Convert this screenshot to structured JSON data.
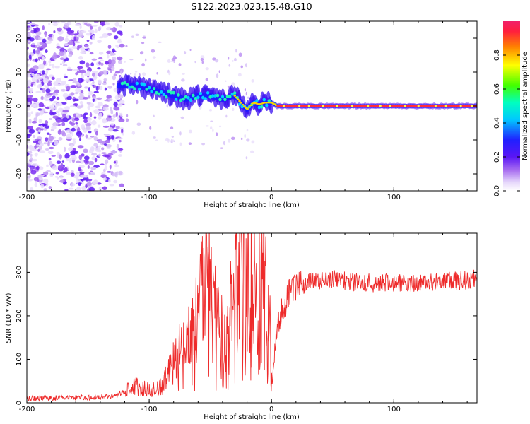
{
  "title": "S122.2023.023.15.48.G10",
  "colors": {
    "snr_line": "#ee2b2b",
    "spec_low": "#c39cf0",
    "spec_mid": "#1a1aff",
    "spec_high": "#ff1f3d",
    "frame": "#000000"
  },
  "chart_data": [
    {
      "type": "heatmap",
      "xlabel": "Height of straight line (km)",
      "ylabel": "Frequency (Hz)",
      "xlim": [
        -200,
        168
      ],
      "ylim": [
        -25,
        25
      ],
      "xticks": [
        -200,
        -100,
        0,
        100
      ],
      "xtick_labels": [
        "-200",
        "-100",
        "0",
        "100"
      ],
      "yticks": [
        -20,
        -10,
        0,
        10,
        20
      ],
      "ytick_labels": [
        "-20",
        "-10",
        "0",
        "10",
        "20"
      ],
      "colorbar": {
        "label": "Normalized spectral amplitude",
        "range": [
          0,
          1
        ],
        "ticks": [
          0.0,
          0.2,
          0.4,
          0.6,
          0.8
        ],
        "tick_labels": [
          "0.0",
          "0.2",
          "0.4",
          "0.6",
          "0.8"
        ]
      },
      "ridge": {
        "x": [
          -125,
          -110,
          -100,
          -90,
          -80,
          -70,
          -60,
          -50,
          -40,
          -30,
          -25,
          -20,
          -15,
          -10,
          -5,
          0,
          5,
          50,
          100,
          168
        ],
        "freq": [
          6,
          6,
          5,
          4,
          3,
          2,
          3,
          3,
          2,
          3,
          1,
          -1,
          1,
          0.5,
          1,
          1,
          0,
          0,
          0,
          0
        ]
      }
    },
    {
      "type": "line",
      "xlabel": "Height of straight line (km)",
      "ylabel": "SNR (10 * v/v)",
      "xlim": [
        -200,
        168
      ],
      "ylim": [
        0,
        390
      ],
      "xticks": [
        -200,
        -100,
        0,
        100
      ],
      "xtick_labels": [
        "-200",
        "-100",
        "0",
        "100"
      ],
      "yticks": [
        0,
        100,
        200,
        300
      ],
      "ytick_labels": [
        "0",
        "100",
        "200",
        "300"
      ],
      "series": [
        {
          "name": "SNR",
          "x": [
            -200,
            -180,
            -160,
            -140,
            -130,
            -120,
            -115,
            -110,
            -100,
            -90,
            -85,
            -80,
            -70,
            -60,
            -55,
            -50,
            -45,
            -40,
            -35,
            -30,
            -25,
            -20,
            -15,
            -10,
            -5,
            -1,
            0,
            5,
            10,
            15,
            20,
            25,
            30,
            40,
            50,
            60,
            80,
            100,
            120,
            140,
            160,
            168
          ],
          "values": [
            10,
            11,
            12,
            13,
            15,
            25,
            45,
            40,
            30,
            35,
            60,
            90,
            110,
            170,
            230,
            240,
            170,
            140,
            160,
            230,
            330,
            250,
            300,
            240,
            270,
            150,
            40,
            180,
            220,
            255,
            265,
            270,
            278,
            280,
            285,
            280,
            275,
            275,
            277,
            280,
            282,
            285
          ]
        }
      ]
    }
  ]
}
